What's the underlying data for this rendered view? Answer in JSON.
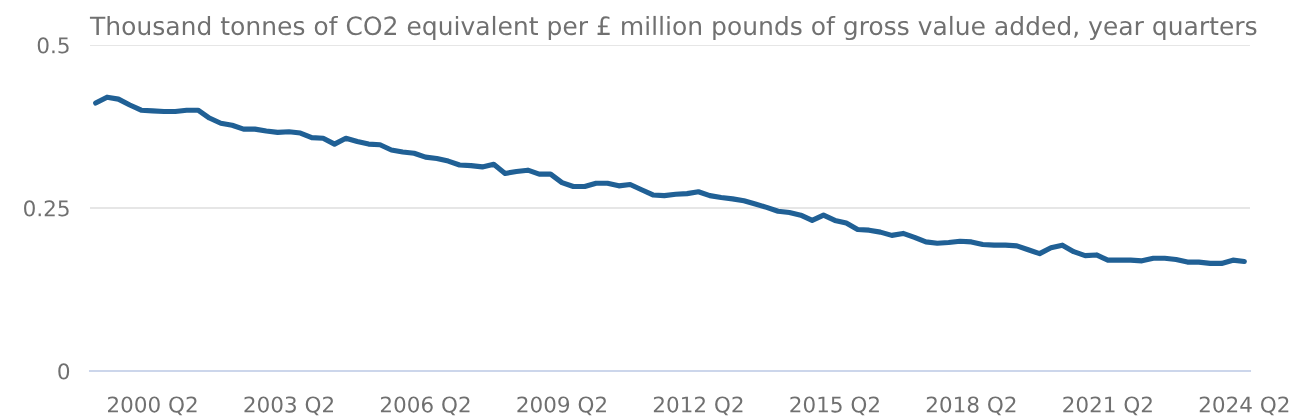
{
  "chart_data": {
    "type": "line",
    "title": "Thousand tonnes of CO2 equivalent per £ million pounds of gross value added, year quarters",
    "categories": [
      null,
      null,
      null,
      null,
      null,
      "2000 Q2",
      null,
      null,
      null,
      null,
      null,
      null,
      null,
      null,
      null,
      null,
      null,
      "2003 Q2",
      null,
      null,
      null,
      null,
      null,
      null,
      null,
      null,
      null,
      null,
      null,
      "2006 Q2",
      null,
      null,
      null,
      null,
      null,
      null,
      null,
      null,
      null,
      null,
      null,
      "2009 Q2",
      null,
      null,
      null,
      null,
      null,
      null,
      null,
      null,
      null,
      null,
      null,
      "2012 Q2",
      null,
      null,
      null,
      null,
      null,
      null,
      null,
      null,
      null,
      null,
      null,
      "2015 Q2",
      null,
      null,
      null,
      null,
      null,
      null,
      null,
      null,
      null,
      null,
      null,
      "2018 Q2",
      null,
      null,
      null,
      null,
      null,
      null,
      null,
      null,
      null,
      null,
      null,
      "2021 Q2",
      null,
      null,
      null,
      null,
      null,
      null,
      null,
      null,
      null,
      null,
      null,
      "2024 Q2"
    ],
    "series": [
      {
        "color": "#206095",
        "values": [
          0.411,
          0.42,
          0.417,
          0.408,
          0.4,
          0.399,
          0.398,
          0.398,
          0.4,
          0.4,
          0.388,
          0.38,
          0.377,
          0.371,
          0.371,
          0.368,
          0.366,
          0.367,
          0.365,
          0.358,
          0.357,
          0.348,
          0.357,
          0.352,
          0.348,
          0.347,
          0.339,
          0.336,
          0.334,
          0.328,
          0.326,
          0.322,
          0.316,
          0.315,
          0.313,
          0.317,
          0.303,
          0.306,
          0.308,
          0.302,
          0.302,
          0.289,
          0.283,
          0.283,
          0.288,
          0.288,
          0.284,
          0.286,
          0.278,
          0.27,
          0.269,
          0.271,
          0.272,
          0.275,
          0.269,
          0.266,
          0.264,
          0.261,
          0.256,
          0.251,
          0.245,
          0.243,
          0.239,
          0.231,
          0.239,
          0.231,
          0.227,
          0.217,
          0.216,
          0.213,
          0.208,
          0.211,
          0.205,
          0.198,
          0.196,
          0.197,
          0.199,
          0.198,
          0.194,
          0.193,
          0.193,
          0.192,
          0.186,
          0.18,
          0.189,
          0.193,
          0.183,
          0.177,
          0.178,
          0.17,
          0.17,
          0.17,
          0.169,
          0.173,
          0.173,
          0.171,
          0.167,
          0.167,
          0.165,
          0.165,
          0.17,
          0.168
        ]
      }
    ],
    "ylim": [
      0,
      0.5
    ],
    "yticks": [
      0,
      0.25,
      0.5
    ],
    "grid": "y",
    "line_style": "solid"
  }
}
